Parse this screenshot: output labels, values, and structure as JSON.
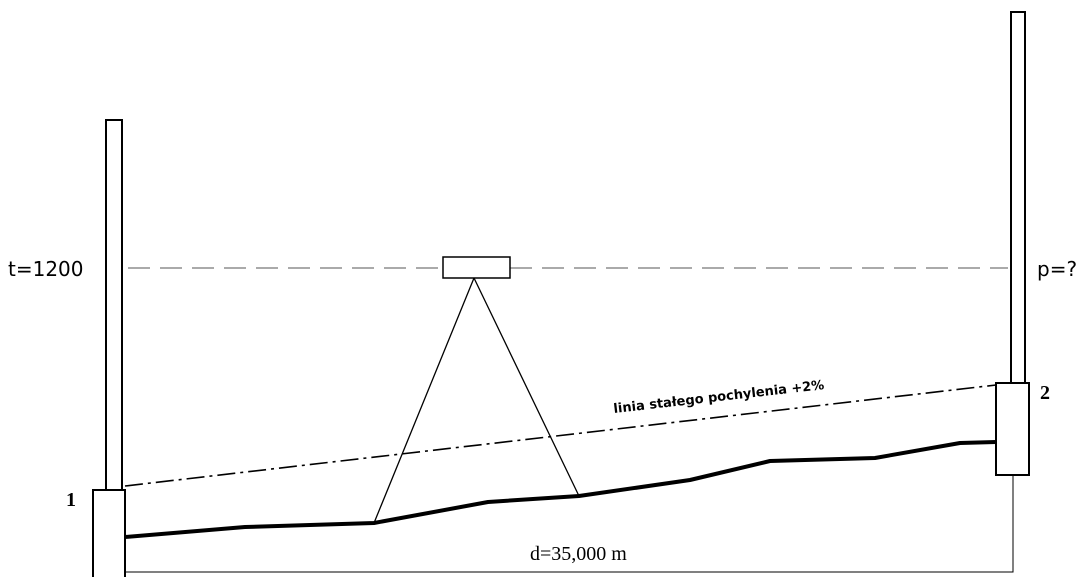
{
  "labels": {
    "reading_back": "t=1200",
    "reading_forward": "p=?",
    "point_start": "1",
    "point_end": "2",
    "slope_line": "linia stałego pochylenia +2%",
    "distance": "d=35,000 m"
  }
}
